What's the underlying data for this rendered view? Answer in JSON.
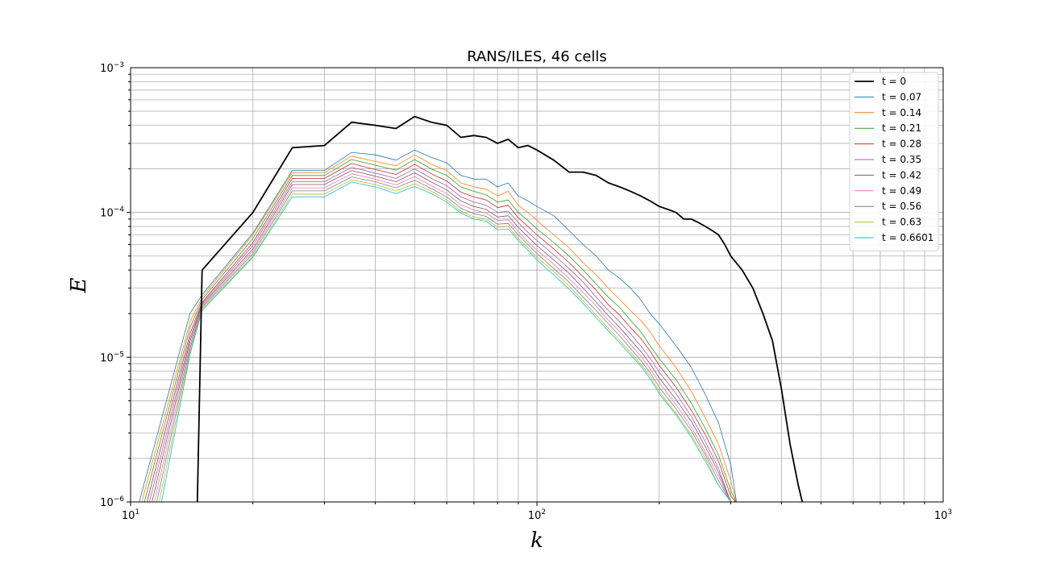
{
  "chart_data": {
    "type": "line",
    "title": "RANS/ILES, 46 cells",
    "xlabel": "k",
    "ylabel": "E",
    "xscale": "log",
    "yscale": "log",
    "xlim": [
      10,
      1000
    ],
    "ylim": [
      1e-06,
      0.001
    ],
    "grid": true,
    "grid_minor": true,
    "legend_placement": "top-right",
    "x_ticks": [
      {
        "value": 10,
        "base": "10",
        "exp": "1"
      },
      {
        "value": 100,
        "base": "10",
        "exp": "2"
      },
      {
        "value": 1000,
        "base": "10",
        "exp": "3"
      }
    ],
    "y_ticks": [
      {
        "value": 1e-06,
        "base": "10",
        "exp": "−6"
      },
      {
        "value": 1e-05,
        "base": "10",
        "exp": "−5"
      },
      {
        "value": 0.0001,
        "base": "10",
        "exp": "−4"
      },
      {
        "value": 0.001,
        "base": "10",
        "exp": "−3"
      }
    ],
    "base_k": [
      10.5,
      14,
      15,
      20,
      25,
      30,
      35,
      40,
      45,
      50,
      55,
      60,
      65,
      70,
      75,
      80,
      85,
      90,
      95,
      100,
      110,
      120,
      130,
      140,
      150,
      160,
      170,
      180,
      190,
      200,
      220,
      240,
      260,
      280,
      300,
      310
    ],
    "initial": {
      "name": "t = 0",
      "k": [
        14.6,
        15,
        20,
        25,
        30,
        35,
        40,
        45,
        50,
        55,
        60,
        65,
        70,
        75,
        80,
        85,
        90,
        95,
        100,
        110,
        120,
        130,
        140,
        150,
        160,
        170,
        180,
        190,
        200,
        210,
        220,
        230,
        240,
        250,
        260,
        270,
        280,
        290,
        300,
        320,
        340,
        360,
        380,
        400,
        420,
        440,
        450
      ],
      "E": [
        1e-06,
        4e-05,
        0.0001,
        0.00028,
        0.00029,
        0.00042,
        0.0004,
        0.00038,
        0.00046,
        0.00042,
        0.0004,
        0.00033,
        0.00034,
        0.00033,
        0.0003,
        0.00032,
        0.00028,
        0.00029,
        0.00027,
        0.00023,
        0.00019,
        0.00019,
        0.00018,
        0.00016,
        0.00015,
        0.00014,
        0.00013,
        0.00012,
        0.00011,
        0.000105,
        0.0001,
        9e-05,
        9e-05,
        8.5e-05,
        8e-05,
        7.5e-05,
        7e-05,
        6e-05,
        5e-05,
        4e-05,
        3e-05,
        2e-05,
        1.3e-05,
        6e-06,
        2.5e-06,
        1.3e-06,
        1e-06
      ]
    },
    "series": [
      {
        "name": "t = 0.07",
        "color": "#1f77b4",
        "E": [
          1e-06,
          2e-05,
          2.7e-05,
          7.2e-05,
          0.000195,
          0.000195,
          0.00026,
          0.00025,
          0.00023,
          0.00027,
          0.00024,
          0.00022,
          0.00018,
          0.00017,
          0.00017,
          0.00015,
          0.00016,
          0.00013,
          0.00012,
          0.00011,
          9.5e-05,
          7.5e-05,
          6e-05,
          5e-05,
          4e-05,
          3.5e-05,
          3e-05,
          2.5e-05,
          2e-05,
          1.7e-05,
          1.2e-05,
          8.5e-06,
          5.5e-06,
          3.5e-06,
          1.8e-06,
          1e-06
        ]
      },
      {
        "name": "t = 0.14",
        "color": "#ff7f0e",
        "E": [
          1e-06,
          1.75e-05,
          2.6e-05,
          7e-05,
          0.000188,
          0.000188,
          0.000245,
          0.000225,
          0.00021,
          0.00025,
          0.000215,
          0.000195,
          0.00016,
          0.00015,
          0.000145,
          0.00013,
          0.00014,
          0.000112,
          0.0001,
          8.8e-05,
          7e-05,
          5.7e-05,
          4.5e-05,
          3.7e-05,
          3e-05,
          2.5e-05,
          2.1e-05,
          1.8e-05,
          1.5e-05,
          1.2e-05,
          8.5e-06,
          5.8e-06,
          3.8e-06,
          2.5e-06,
          1.4e-06,
          1e-06
        ]
      },
      {
        "name": "t = 0.21",
        "color": "#2ca02c",
        "E": [
          1e-06,
          1.6e-05,
          2.5e-05,
          6.6e-05,
          0.00018,
          0.00018,
          0.000232,
          0.000212,
          0.000196,
          0.000232,
          0.0002,
          0.00018,
          0.00015,
          0.00014,
          0.000132,
          0.000118,
          0.000122,
          0.0001,
          8.8e-05,
          7.7e-05,
          6.2e-05,
          5e-05,
          4e-05,
          3.2e-05,
          2.6e-05,
          2.2e-05,
          1.8e-05,
          1.5e-05,
          1.2e-05,
          9.8e-06,
          7e-06,
          4.8e-06,
          3.2e-06,
          2.1e-06,
          1.2e-06,
          1e-06
        ]
      },
      {
        "name": "t = 0.28",
        "color": "#d62728",
        "E": [
          1e-06,
          1.45e-05,
          2.4e-05,
          6.2e-05,
          0.000172,
          0.000172,
          0.000218,
          0.000198,
          0.000183,
          0.000215,
          0.000185,
          0.000165,
          0.000138,
          0.000128,
          0.000122,
          0.000108,
          0.000112,
          9.2e-05,
          8e-05,
          7e-05,
          5.6e-05,
          4.5e-05,
          3.6e-05,
          2.9e-05,
          2.3e-05,
          1.95e-05,
          1.6e-05,
          1.35e-05,
          1.1e-05,
          8.8e-06,
          6.2e-06,
          4.3e-06,
          2.9e-06,
          1.9e-06,
          1.1e-06,
          1e-06
        ]
      },
      {
        "name": "t = 0.35",
        "color": "#9467bd",
        "E": [
          1e-06,
          1.35e-05,
          2.35e-05,
          5.9e-05,
          0.000163,
          0.000163,
          0.000205,
          0.000187,
          0.000172,
          0.0002,
          0.000172,
          0.000153,
          0.000128,
          0.000118,
          0.000112,
          0.0001,
          0.000102,
          8.5e-05,
          7.3e-05,
          6.4e-05,
          5.1e-05,
          4.1e-05,
          3.3e-05,
          2.6e-05,
          2.1e-05,
          1.75e-05,
          1.45e-05,
          1.2e-05,
          9.8e-06,
          7.9e-06,
          5.6e-06,
          3.9e-06,
          2.6e-06,
          1.7e-06,
          1e-06,
          1e-06
        ]
      },
      {
        "name": "t = 0.42",
        "color": "#8c564b",
        "E": [
          1e-06,
          1.28e-05,
          2.3e-05,
          5.6e-05,
          0.000156,
          0.000156,
          0.000195,
          0.000178,
          0.000163,
          0.000188,
          0.000162,
          0.000143,
          0.00012,
          0.00011,
          0.000105,
          9.3e-05,
          9.5e-05,
          7.9e-05,
          6.8e-05,
          5.9e-05,
          4.7e-05,
          3.8e-05,
          3e-05,
          2.4e-05,
          1.93e-05,
          1.6e-05,
          1.32e-05,
          1.1e-05,
          9e-06,
          7.2e-06,
          5.1e-06,
          3.6e-06,
          2.4e-06,
          1.6e-06,
          1e-06,
          1e-06
        ]
      },
      {
        "name": "t = 0.49",
        "color": "#e377c2",
        "E": [
          1e-06,
          1.2e-05,
          2.25e-05,
          5.4e-05,
          0.000148,
          0.000148,
          0.000185,
          0.00017,
          0.000155,
          0.000177,
          0.000153,
          0.000135,
          0.000113,
          0.000104,
          9.9e-05,
          8.8e-05,
          8.9e-05,
          7.4e-05,
          6.3e-05,
          5.5e-05,
          4.4e-05,
          3.5e-05,
          2.8e-05,
          2.25e-05,
          1.8e-05,
          1.5e-05,
          1.23e-05,
          1.02e-05,
          8.3e-06,
          6.7e-06,
          4.7e-06,
          3.3e-06,
          2.2e-06,
          1.5e-06,
          1e-06,
          1e-06
        ]
      },
      {
        "name": "t = 0.56",
        "color": "#7f7f7f",
        "E": [
          1e-06,
          1.14e-05,
          2.2e-05,
          5.2e-05,
          0.000141,
          0.000141,
          0.000176,
          0.000163,
          0.000148,
          0.000167,
          0.000146,
          0.000128,
          0.000107,
          9.8e-05,
          9.4e-05,
          8.3e-05,
          8.4e-05,
          7e-05,
          6e-05,
          5.2e-05,
          4.1e-05,
          3.3e-05,
          2.6e-05,
          2.1e-05,
          1.7e-05,
          1.4e-05,
          1.15e-05,
          9.5e-06,
          7.8e-06,
          6.2e-06,
          4.4e-06,
          3.1e-06,
          2.1e-06,
          1.4e-06,
          1e-06,
          1e-06
        ]
      },
      {
        "name": "t = 0.63",
        "color": "#bcbd22",
        "E": [
          1e-06,
          1.08e-05,
          2.15e-05,
          5e-05,
          0.000134,
          0.000134,
          0.000168,
          0.000156,
          0.000141,
          0.000158,
          0.00014,
          0.000122,
          0.000102,
          9.3e-05,
          9e-05,
          7.9e-05,
          8e-05,
          6.6e-05,
          5.7e-05,
          4.9e-05,
          3.9e-05,
          3.1e-05,
          2.45e-05,
          1.95e-05,
          1.58e-05,
          1.3e-05,
          1.08e-05,
          9e-06,
          7.4e-06,
          5.8e-06,
          4.1e-06,
          2.9e-06,
          2e-06,
          1.3e-06,
          1e-06,
          1e-06
        ]
      },
      {
        "name": "t = 0.6601",
        "color": "#17becf",
        "E": [
          1e-06,
          1.04e-05,
          2.1e-05,
          4.9e-05,
          0.000128,
          0.000128,
          0.000162,
          0.00015,
          0.000135,
          0.000151,
          0.000135,
          0.000118,
          9.9e-05,
          9e-05,
          8.7e-05,
          7.6e-05,
          7.7e-05,
          6.4e-05,
          5.5e-05,
          4.7e-05,
          3.7e-05,
          2.95e-05,
          2.35e-05,
          1.87e-05,
          1.52e-05,
          1.25e-05,
          1.04e-05,
          8.7e-06,
          7.1e-06,
          5.6e-06,
          4e-06,
          2.8e-06,
          1.9e-06,
          1.3e-06,
          1e-06,
          1e-06
        ]
      }
    ]
  }
}
